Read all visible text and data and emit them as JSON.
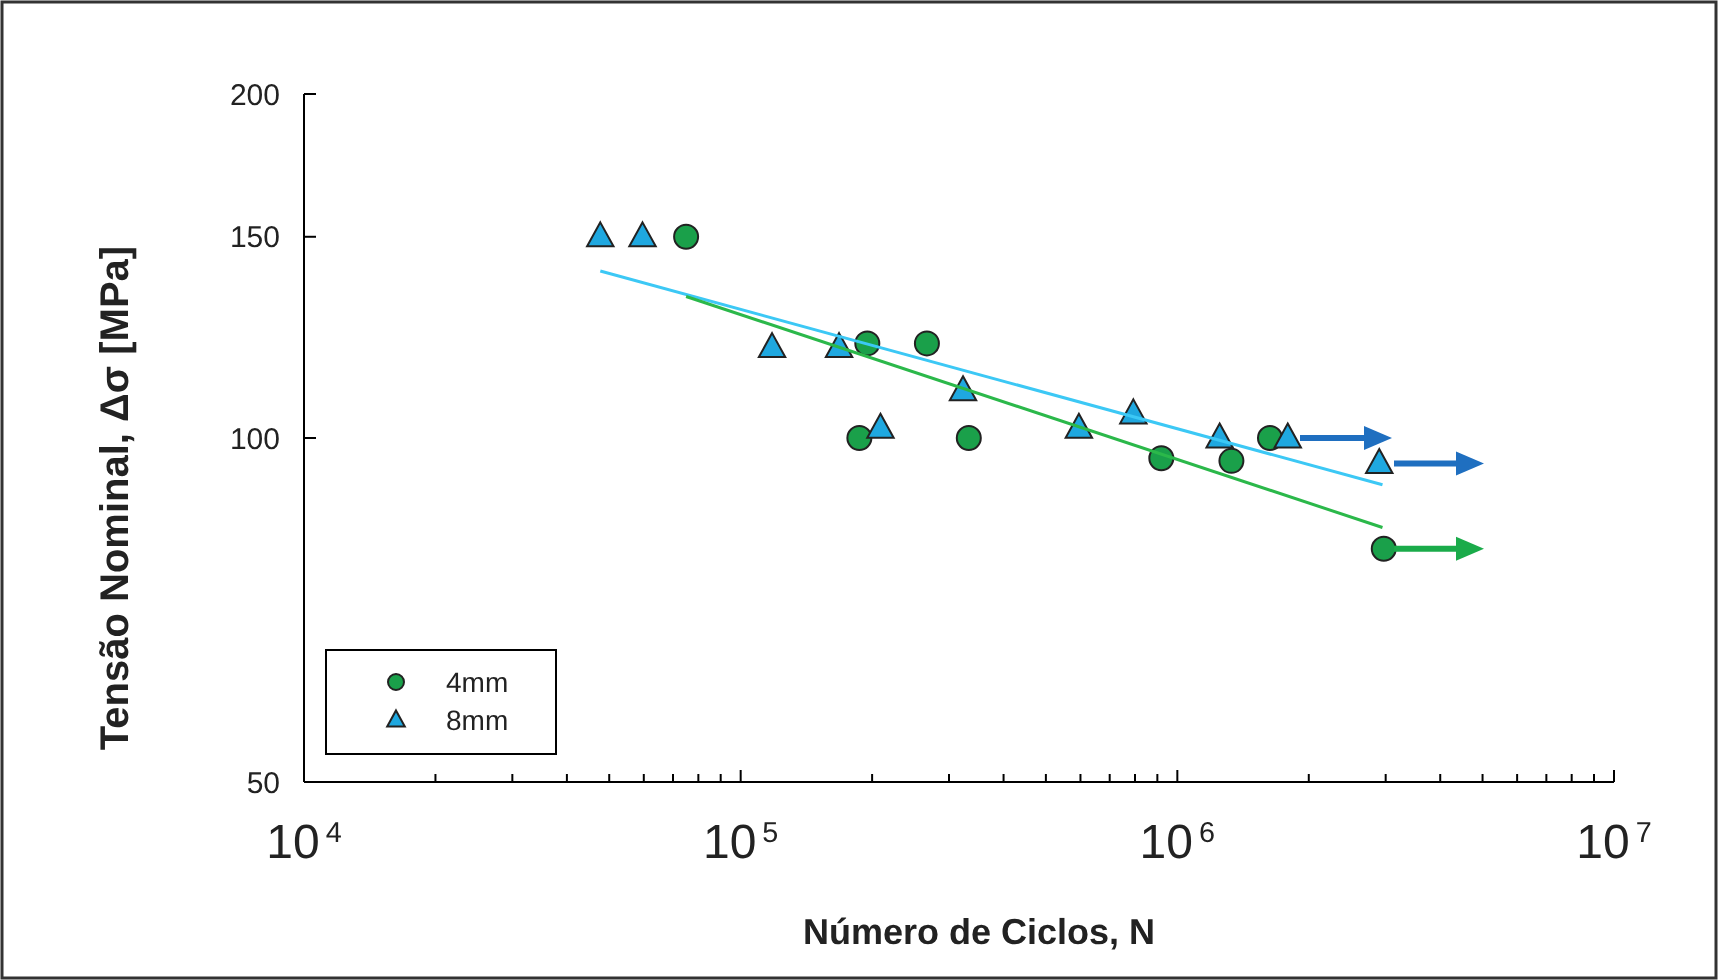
{
  "chart_data": {
    "type": "scatter",
    "xlabel": "Número de Ciclos, N",
    "ylabel": "Tensão Nominal, Δσ  [MPa]",
    "log": "xy",
    "grid": false,
    "legend": "bottom left",
    "xlim": [
      10000,
      10000000
    ],
    "ylim": [
      50,
      200
    ],
    "xticks": [
      {
        "value": 10000,
        "label": "10$^{4}$"
      },
      {
        "value": 20000,
        "label": null
      },
      {
        "value": 30000,
        "label": null
      },
      {
        "value": 40000,
        "label": null
      },
      {
        "value": 50000,
        "label": null
      },
      {
        "value": 60000,
        "label": null
      },
      {
        "value": 70000,
        "label": null
      },
      {
        "value": 80000,
        "label": null
      },
      {
        "value": 90000,
        "label": null
      },
      {
        "value": 100000,
        "label": "10$^{5}$"
      },
      {
        "value": 200000,
        "label": null
      },
      {
        "value": 300000,
        "label": null
      },
      {
        "value": 400000,
        "label": null
      },
      {
        "value": 500000,
        "label": null
      },
      {
        "value": 600000,
        "label": null
      },
      {
        "value": 700000,
        "label": null
      },
      {
        "value": 800000,
        "label": null
      },
      {
        "value": 900000,
        "label": null
      },
      {
        "value": 1000000,
        "label": "10$^{6}$"
      },
      {
        "value": 2000000,
        "label": null
      },
      {
        "value": 3000000,
        "label": null
      },
      {
        "value": 4000000,
        "label": null
      },
      {
        "value": 5000000,
        "label": null
      },
      {
        "value": 6000000,
        "label": null
      },
      {
        "value": 7000000,
        "label": null
      },
      {
        "value": 8000000,
        "label": null
      },
      {
        "value": 9000000,
        "label": null
      },
      {
        "value": 10000000,
        "label": "10$^{7}$"
      }
    ],
    "yticks": [
      50,
      100,
      150,
      200
    ],
    "series": [
      {
        "name": "4mm",
        "marker": "circle",
        "color": "#1aa04a",
        "x": [
          75000,
          187000,
          195000,
          267000,
          333000,
          919000,
          1330000,
          1630000,
          2970000
        ],
        "values": [
          150,
          100,
          121,
          121,
          100,
          96,
          95.5,
          100,
          80
        ]
      },
      {
        "name": "8mm",
        "marker": "triangle",
        "color": "#1fa8e0",
        "x": [
          47700,
          59600,
          118000,
          168000,
          209000,
          323000,
          595000,
          793000,
          1250000,
          1790000,
          2900000
        ],
        "values": [
          150,
          150,
          120,
          120,
          102,
          110,
          102,
          105,
          100,
          100,
          95
        ]
      },
      {
        "type": "line",
        "marker": "none",
        "color": "#3cc8f5",
        "x": [
          47700,
          2950000
        ],
        "values": [
          140,
          91
        ]
      },
      {
        "type": "line",
        "marker": "none",
        "color": "#2bb84a",
        "x": [
          75000,
          2950000
        ],
        "values": [
          133,
          83.5
        ]
      }
    ]
  }
}
